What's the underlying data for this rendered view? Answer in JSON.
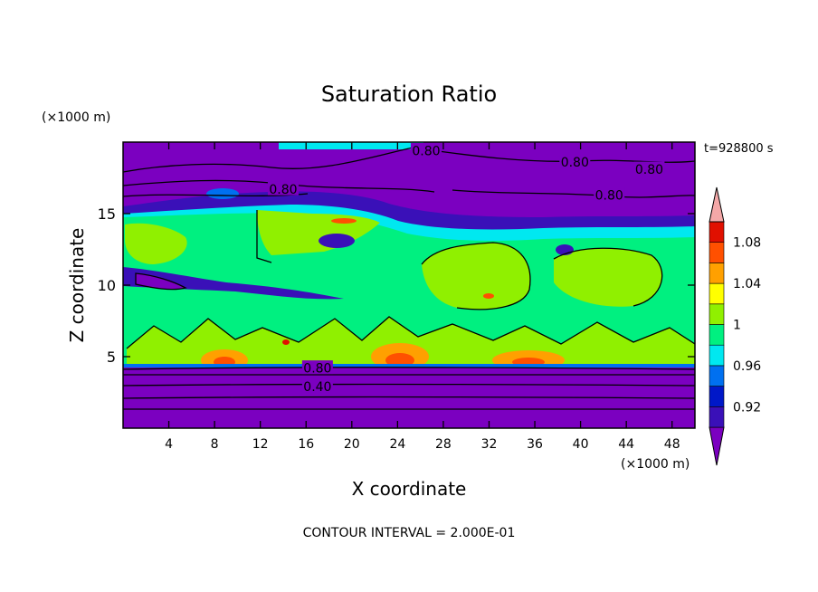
{
  "chart_data": {
    "type": "heatmap",
    "title": "Saturation Ratio",
    "xlabel": "X coordinate",
    "ylabel": "Z coordinate",
    "x_unit": "(×1000 m)",
    "y_unit": "(×1000 m)",
    "time_label": "t=928800 s",
    "footer": "CONTOUR INTERVAL = 2.000E-01",
    "xlim": [
      0,
      50
    ],
    "ylim": [
      0,
      20
    ],
    "x_ticks": [
      4,
      8,
      12,
      16,
      20,
      24,
      28,
      32,
      36,
      40,
      44,
      48
    ],
    "y_ticks": [
      5,
      10,
      15
    ],
    "colorbar": {
      "labels": [
        "1.08",
        "1.04",
        "1",
        "0.96",
        "0.92"
      ],
      "levels": [
        0.9,
        0.92,
        0.94,
        0.96,
        0.98,
        1.0,
        1.02,
        1.04,
        1.06,
        1.08,
        1.1
      ],
      "colors": [
        "#7b00c0",
        "#3a10b8",
        "#0018c8",
        "#0070f0",
        "#00e8f0",
        "#00f080",
        "#90f000",
        "#ffff00",
        "#ffa000",
        "#ff5000",
        "#e01000",
        "#f4a8a8"
      ]
    },
    "contour_labels": [
      {
        "text": "0.80",
        "x": 26.5,
        "y": 19.4
      },
      {
        "text": "0.80",
        "x": 39.5,
        "y": 18.6
      },
      {
        "text": "0.80",
        "x": 46.0,
        "y": 18.1
      },
      {
        "text": "0.80",
        "x": 14.0,
        "y": 16.7
      },
      {
        "text": "0.80",
        "x": 42.5,
        "y": 16.3
      },
      {
        "text": "0.80",
        "x": 17.0,
        "y": 4.2
      },
      {
        "text": "0.40",
        "x": 17.0,
        "y": 2.9
      }
    ]
  }
}
